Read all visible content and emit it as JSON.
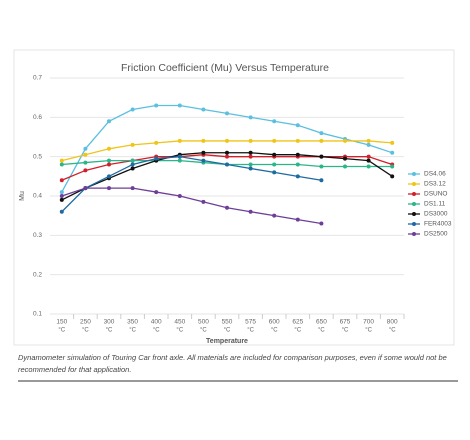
{
  "chart_data": {
    "type": "line",
    "title": "Friction Coefficient (Mu) Versus Temperature",
    "x_label": "Temperature",
    "y_label": "Mu",
    "x_unit": "°C",
    "categories": [
      "150",
      "250",
      "300",
      "350",
      "400",
      "450",
      "500",
      "550",
      "575",
      "600",
      "625",
      "650",
      "675",
      "700",
      "800"
    ],
    "ylim": [
      0.1,
      0.7
    ],
    "yticks": [
      0.1,
      0.2,
      0.3,
      0.4,
      0.5,
      0.6,
      0.7
    ],
    "grid": true,
    "legend": "right",
    "series": [
      {
        "name": "DS4.06",
        "color": "#5bbfe0",
        "values": [
          0.41,
          0.52,
          0.59,
          0.62,
          0.63,
          0.63,
          0.62,
          0.61,
          0.6,
          0.59,
          0.58,
          0.56,
          0.545,
          0.53,
          0.51
        ]
      },
      {
        "name": "DS3.12",
        "color": "#f0c419",
        "values": [
          0.49,
          0.505,
          0.52,
          0.53,
          0.535,
          0.54,
          0.54,
          0.54,
          0.54,
          0.54,
          0.54,
          0.54,
          0.54,
          0.54,
          0.535
        ]
      },
      {
        "name": "DSUNO",
        "color": "#d0202a",
        "values": [
          0.44,
          0.465,
          0.48,
          0.49,
          0.5,
          0.5,
          0.505,
          0.5,
          0.5,
          0.5,
          0.5,
          0.5,
          0.5,
          0.5,
          0.48
        ]
      },
      {
        "name": "DS1.11",
        "color": "#2bb58a",
        "values": [
          0.48,
          0.485,
          0.49,
          0.49,
          0.49,
          0.49,
          0.485,
          0.48,
          0.48,
          0.48,
          0.48,
          0.475,
          0.475,
          0.475,
          0.475
        ]
      },
      {
        "name": "DS3000",
        "color": "#111111",
        "values": [
          0.39,
          0.42,
          0.445,
          0.47,
          0.49,
          0.505,
          0.51,
          0.51,
          0.51,
          0.505,
          0.505,
          0.5,
          0.495,
          0.49,
          0.45
        ]
      },
      {
        "name": "FER4003",
        "color": "#1f6aa0",
        "values": [
          0.36,
          0.42,
          0.45,
          0.48,
          0.495,
          0.5,
          0.49,
          0.48,
          0.47,
          0.46,
          0.45,
          0.44,
          null,
          null,
          null
        ]
      },
      {
        "name": "DS2500",
        "color": "#6d3f99",
        "values": [
          0.4,
          0.42,
          0.42,
          0.42,
          0.41,
          0.4,
          0.385,
          0.37,
          0.36,
          0.35,
          0.34,
          0.33,
          null,
          null,
          null
        ]
      }
    ]
  },
  "caption": "Dynamometer simulation of Touring Car front axle. All materials are included for comparison purposes, even if some would not be recommended for that application."
}
